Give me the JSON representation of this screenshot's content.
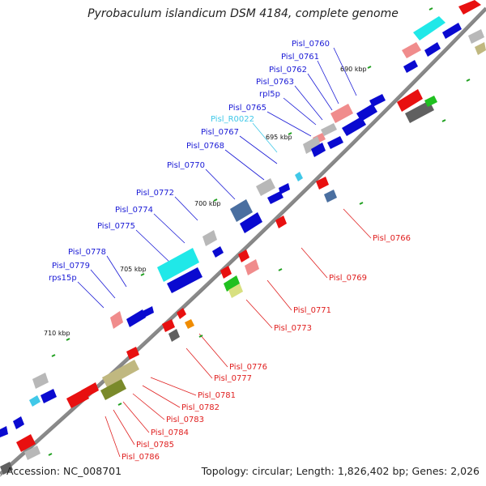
{
  "title": "Pyrobaculum islandicum DSM 4184, complete genome",
  "footer": {
    "accession": "Accession: NC_008701",
    "summary": "Topology: circular; Length: 1,826,402 bp; Genes: 2,026"
  },
  "ticks": [
    "690 kbp",
    "695 kbp",
    "700 kbp",
    "705 kbp",
    "710 kbp"
  ],
  "labels_forward": [
    "Pisl_0760",
    "Pisl_0761",
    "Pisl_0762",
    "Pisl_0763",
    "rpl5p",
    "Pisl_0765",
    "Pisl_R0022",
    "Pisl_0767",
    "Pisl_0768",
    "Pisl_0770",
    "Pisl_0772",
    "Pisl_0774",
    "Pisl_0775",
    "Pisl_0778",
    "Pisl_0779",
    "rps15p"
  ],
  "labels_reverse": [
    "Pisl_0766",
    "Pisl_0769",
    "Pisl_0771",
    "Pisl_0773",
    "Pisl_0776",
    "Pisl_0777",
    "Pisl_0781",
    "Pisl_0782",
    "Pisl_0783",
    "Pisl_0784",
    "Pisl_0785",
    "Pisl_0786"
  ],
  "colors": {
    "forward_label": "#1a1ad6",
    "rna_label": "#40c8e8",
    "reverse_label": "#e02020",
    "backbone": "#8a8a8a",
    "gene_blue": "#0a0ad0",
    "gene_red": "#e81010",
    "gene_cyan": "#20e8e8",
    "gene_gray": "#b8b8b8",
    "gene_pink": "#f08c8c"
  }
}
